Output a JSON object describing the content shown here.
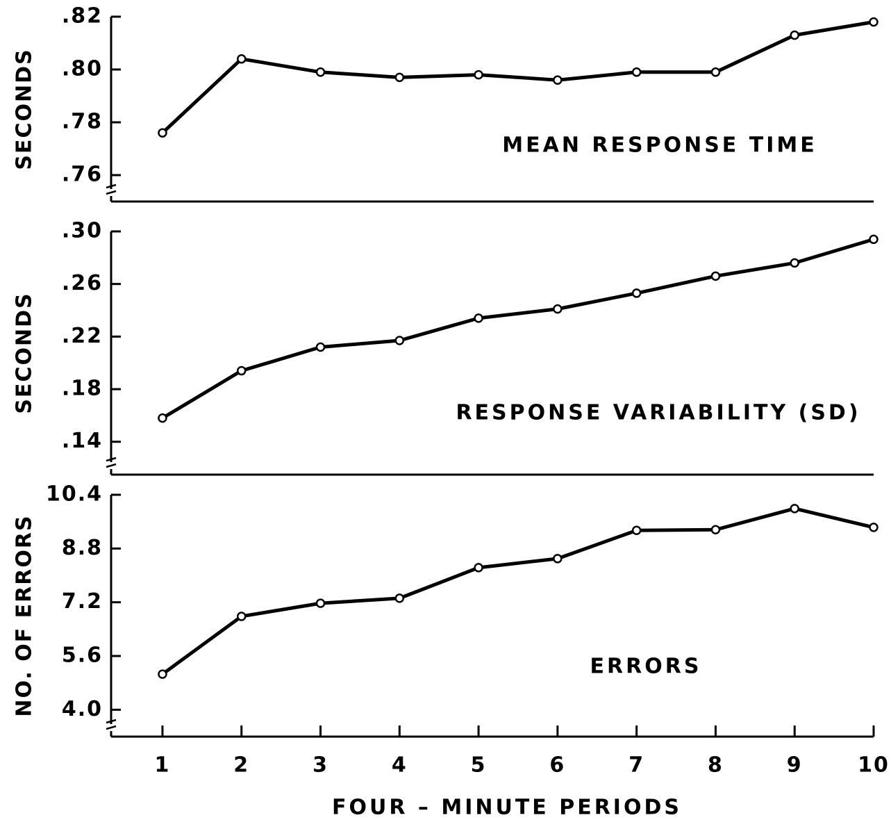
{
  "chart_data": [
    {
      "type": "line",
      "annotation": "MEAN RESPONSE TIME",
      "ylabel": "SECONDS",
      "color": "#000000",
      "grid": false,
      "x": [
        1,
        2,
        3,
        4,
        5,
        6,
        7,
        8,
        9,
        10
      ],
      "values": [
        0.776,
        0.804,
        0.799,
        0.797,
        0.798,
        0.796,
        0.799,
        0.799,
        0.813,
        0.818
      ],
      "xlim": [
        0.35,
        10
      ],
      "ylim": [
        0.75,
        0.82
      ],
      "yticks": [
        {
          "value": 0.82,
          "label": ".82"
        },
        {
          "value": 0.8,
          "label": ".80"
        },
        {
          "value": 0.78,
          "label": ".78"
        },
        {
          "value": 0.76,
          "label": ".76"
        }
      ]
    },
    {
      "type": "line",
      "annotation": "RESPONSE VARIABILITY (SD)",
      "ylabel": "SECONDS",
      "color": "#000000",
      "grid": false,
      "x": [
        1,
        2,
        3,
        4,
        5,
        6,
        7,
        8,
        9,
        10
      ],
      "values": [
        0.158,
        0.194,
        0.212,
        0.217,
        0.234,
        0.241,
        0.253,
        0.266,
        0.276,
        0.294
      ],
      "xlim": [
        0.35,
        10
      ],
      "ylim": [
        0.115,
        0.3
      ],
      "yticks": [
        {
          "value": 0.3,
          "label": ".30"
        },
        {
          "value": 0.26,
          "label": ".26"
        },
        {
          "value": 0.22,
          "label": ".22"
        },
        {
          "value": 0.18,
          "label": ".18"
        },
        {
          "value": 0.14,
          "label": ".14"
        }
      ]
    },
    {
      "type": "line",
      "annotation": "ERRORS",
      "ylabel": "NO. OF ERRORS",
      "xlabel": "FOUR – MINUTE PERIODS",
      "color": "#000000",
      "grid": false,
      "x": [
        1,
        2,
        3,
        4,
        5,
        6,
        7,
        8,
        9,
        10
      ],
      "values": [
        5.06,
        6.78,
        7.17,
        7.32,
        8.23,
        8.5,
        9.34,
        9.36,
        9.99,
        9.43
      ],
      "xlim": [
        0.35,
        10
      ],
      "ylim": [
        3.2,
        10.4
      ],
      "xticks": [
        1,
        2,
        3,
        4,
        5,
        6,
        7,
        8,
        9,
        10
      ],
      "yticks": [
        10.4,
        8.8,
        7.2,
        5.6,
        {
          "value": 4,
          "label": "4.0"
        }
      ]
    }
  ]
}
